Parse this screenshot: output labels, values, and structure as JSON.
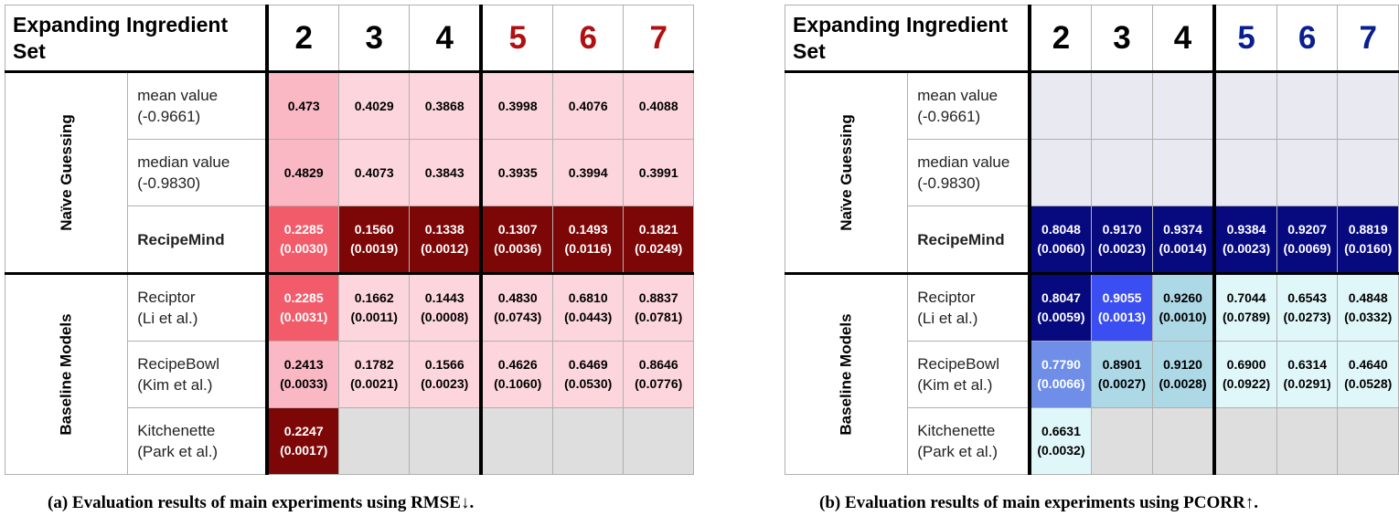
{
  "column_header": "Expanding Ingredient Set",
  "columns": [
    "2",
    "3",
    "4",
    "5",
    "6",
    "7"
  ],
  "groups": [
    {
      "label": "Naïve Guessing",
      "models": [
        "mean value",
        "median value",
        "RecipeMind"
      ]
    },
    {
      "label": "Baseline Models",
      "models": [
        "Reciptor",
        "RecipeBowl",
        "Kitchenette"
      ]
    }
  ],
  "models": [
    {
      "name": "mean value",
      "sub": "(-0.9661)",
      "bold": false
    },
    {
      "name": "median value",
      "sub": "(-0.9830)",
      "bold": false
    },
    {
      "name": "RecipeMind",
      "sub": "",
      "bold": true
    },
    {
      "name": "Reciptor",
      "sub": "(Li et al.)",
      "bold": false
    },
    {
      "name": "RecipeBowl",
      "sub": "(Kim et al.)",
      "bold": false
    },
    {
      "name": "Kitchenette",
      "sub": "(Park et al.)",
      "bold": false
    }
  ],
  "colors": {
    "rmse_header_highlight": "#b01010",
    "pcorr_header_highlight": "#0a1f8f",
    "missing": "#dedede",
    "pcorr_empty": "#e9e9f2"
  },
  "chart_data": [
    {
      "type": "table",
      "caption": "(a) Evaluation results of main experiments using RMSE↓.",
      "metric": "RMSE",
      "header_colors": [
        "#000000",
        "#000000",
        "#000000",
        "#b01010",
        "#b01010",
        "#b01010"
      ],
      "rows": [
        {
          "values": [
            "0.473",
            "0.4029",
            "0.3868",
            "0.3998",
            "0.4076",
            "0.4088"
          ],
          "stds": [
            "",
            "",
            "",
            "",
            "",
            ""
          ],
          "bg": [
            "#f9b8c3",
            "#fcd6dc",
            "#fcd6dc",
            "#fcd6dc",
            "#fcd6dc",
            "#fcd6dc"
          ],
          "fg": [
            "#000",
            "#000",
            "#000",
            "#000",
            "#000",
            "#000"
          ]
        },
        {
          "values": [
            "0.4829",
            "0.4073",
            "0.3843",
            "0.3935",
            "0.3994",
            "0.3991"
          ],
          "stds": [
            "",
            "",
            "",
            "",
            "",
            ""
          ],
          "bg": [
            "#f9b8c3",
            "#fcd6dc",
            "#fcd6dc",
            "#fcd6dc",
            "#fcd6dc",
            "#fcd6dc"
          ],
          "fg": [
            "#000",
            "#000",
            "#000",
            "#000",
            "#000",
            "#000"
          ]
        },
        {
          "values": [
            "0.2285",
            "0.1560",
            "0.1338",
            "0.1307",
            "0.1493",
            "0.1821"
          ],
          "stds": [
            "(0.0030)",
            "(0.0019)",
            "(0.0012)",
            "(0.0036)",
            "(0.0116)",
            "(0.0249)"
          ],
          "bg": [
            "#f25c6a",
            "#7d0606",
            "#7d0606",
            "#7d0606",
            "#7d0606",
            "#7d0606"
          ],
          "fg": [
            "#fff",
            "#fff",
            "#fff",
            "#fff",
            "#fff",
            "#fff"
          ]
        },
        {
          "values": [
            "0.2285",
            "0.1662",
            "0.1443",
            "0.4830",
            "0.6810",
            "0.8837"
          ],
          "stds": [
            "(0.0031)",
            "(0.0011)",
            "(0.0008)",
            "(0.0743)",
            "(0.0443)",
            "(0.0781)"
          ],
          "bg": [
            "#f25c6a",
            "#fcd6dc",
            "#fcd6dc",
            "#fcd6dc",
            "#fcd6dc",
            "#fcd6dc"
          ],
          "fg": [
            "#fff",
            "#000",
            "#000",
            "#000",
            "#000",
            "#000"
          ]
        },
        {
          "values": [
            "0.2413",
            "0.1782",
            "0.1566",
            "0.4626",
            "0.6469",
            "0.8646"
          ],
          "stds": [
            "(0.0033)",
            "(0.0021)",
            "(0.0023)",
            "(0.1060)",
            "(0.0530)",
            "(0.0776)"
          ],
          "bg": [
            "#f9b8c3",
            "#fcd6dc",
            "#fcd6dc",
            "#fcd6dc",
            "#fcd6dc",
            "#fcd6dc"
          ],
          "fg": [
            "#000",
            "#000",
            "#000",
            "#000",
            "#000",
            "#000"
          ]
        },
        {
          "values": [
            "0.2247",
            "",
            "",
            "",
            "",
            ""
          ],
          "stds": [
            "(0.0017)",
            "",
            "",
            "",
            "",
            ""
          ],
          "bg": [
            "#7d0606",
            "#dedede",
            "#dedede",
            "#dedede",
            "#dedede",
            "#dedede"
          ],
          "fg": [
            "#fff",
            "#000",
            "#000",
            "#000",
            "#000",
            "#000"
          ]
        }
      ]
    },
    {
      "type": "table",
      "caption": "(b) Evaluation results of main experiments using PCORR↑.",
      "metric": "PCORR",
      "header_colors": [
        "#000000",
        "#000000",
        "#000000",
        "#0a1f8f",
        "#0a1f8f",
        "#0a1f8f"
      ],
      "rows": [
        {
          "values": [
            "",
            "",
            "",
            "",
            "",
            ""
          ],
          "stds": [
            "",
            "",
            "",
            "",
            "",
            ""
          ],
          "bg": [
            "#e9e9f2",
            "#e9e9f2",
            "#e9e9f2",
            "#e9e9f2",
            "#e9e9f2",
            "#e9e9f2"
          ],
          "fg": [
            "#000",
            "#000",
            "#000",
            "#000",
            "#000",
            "#000"
          ]
        },
        {
          "values": [
            "",
            "",
            "",
            "",
            "",
            ""
          ],
          "stds": [
            "",
            "",
            "",
            "",
            "",
            ""
          ],
          "bg": [
            "#e9e9f2",
            "#e9e9f2",
            "#e9e9f2",
            "#e9e9f2",
            "#e9e9f2",
            "#e9e9f2"
          ],
          "fg": [
            "#000",
            "#000",
            "#000",
            "#000",
            "#000",
            "#000"
          ]
        },
        {
          "values": [
            "0.8048",
            "0.9170",
            "0.9374",
            "0.9384",
            "0.9207",
            "0.8819"
          ],
          "stds": [
            "(0.0060)",
            "(0.0023)",
            "(0.0014)",
            "(0.0023)",
            "(0.0069)",
            "(0.0160)"
          ],
          "bg": [
            "#07097f",
            "#07097f",
            "#07097f",
            "#07097f",
            "#07097f",
            "#07097f"
          ],
          "fg": [
            "#fff",
            "#fff",
            "#fff",
            "#fff",
            "#fff",
            "#fff"
          ]
        },
        {
          "values": [
            "0.8047",
            "0.9055",
            "0.9260",
            "0.7044",
            "0.6543",
            "0.4848"
          ],
          "stds": [
            "(0.0059)",
            "(0.0013)",
            "(0.0010)",
            "(0.0789)",
            "(0.0273)",
            "(0.0332)"
          ],
          "bg": [
            "#07097f",
            "#3b4ef2",
            "#add8e6",
            "#e0f7fa",
            "#e0f7fa",
            "#e0f7fa"
          ],
          "fg": [
            "#fff",
            "#fff",
            "#000",
            "#000",
            "#000",
            "#000"
          ]
        },
        {
          "values": [
            "0.7790",
            "0.8901",
            "0.9120",
            "0.6900",
            "0.6314",
            "0.4640"
          ],
          "stds": [
            "(0.0066)",
            "(0.0027)",
            "(0.0028)",
            "(0.0922)",
            "(0.0291)",
            "(0.0528)"
          ],
          "bg": [
            "#6e8ee8",
            "#add8e6",
            "#add8e6",
            "#e0f7fa",
            "#e0f7fa",
            "#e0f7fa"
          ],
          "fg": [
            "#fff",
            "#000",
            "#000",
            "#000",
            "#000",
            "#000"
          ]
        },
        {
          "values": [
            "0.6631",
            "",
            "",
            "",
            "",
            ""
          ],
          "stds": [
            "(0.0032)",
            "",
            "",
            "",
            "",
            ""
          ],
          "bg": [
            "#e0f7fa",
            "#dedede",
            "#dedede",
            "#dedede",
            "#dedede",
            "#dedede"
          ],
          "fg": [
            "#000",
            "#000",
            "#000",
            "#000",
            "#000",
            "#000"
          ]
        }
      ]
    }
  ]
}
